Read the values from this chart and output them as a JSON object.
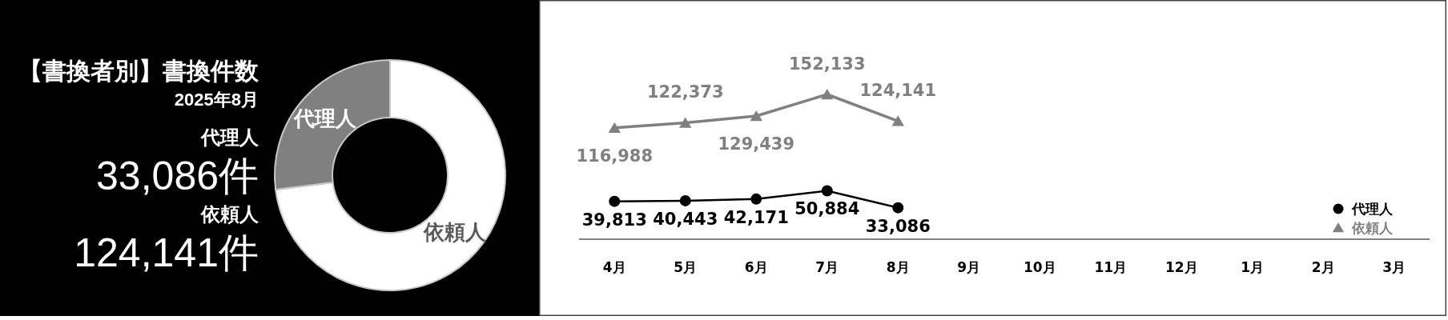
{
  "chart_data": [
    {
      "type": "other",
      "title": "【書換者別】書換件数",
      "subtitle": "2025年8月",
      "annotations": [
        "代理人",
        "33,086件",
        "依頼人",
        "124,141件"
      ]
    },
    {
      "type": "donut",
      "categories": [
        "依頼人",
        "代理人"
      ],
      "values": [
        73,
        27
      ],
      "colors": [
        "#ffffff",
        "#808080"
      ]
    },
    {
      "type": "line",
      "categories": [
        "4月",
        "5月",
        "6月",
        "7月",
        "8月",
        "9月",
        "10月",
        "11月",
        "12月",
        "1月",
        "2月",
        "3月"
      ],
      "series": [
        {
          "name": "代理人",
          "color": "#000000",
          "marker": "circle",
          "values": [
            39813,
            40443,
            42171,
            50884,
            33086,
            null,
            null,
            null,
            null,
            null,
            null,
            null
          ],
          "value_labels": [
            "39,813",
            "40,443",
            "42,171",
            "50,884",
            "33,086",
            null,
            null,
            null,
            null,
            null,
            null,
            null
          ]
        },
        {
          "name": "依頼人",
          "color": "#808080",
          "marker": "triangle",
          "values": [
            116988,
            122373,
            129439,
            152133,
            124141,
            null,
            null,
            null,
            null,
            null,
            null,
            null
          ],
          "value_labels": [
            "116,988",
            "122,373",
            "129,439",
            "152,133",
            "124,141",
            null,
            null,
            null,
            null,
            null,
            null,
            null
          ]
        }
      ],
      "tick_labels": "x",
      "legend": "bottom right"
    }
  ]
}
